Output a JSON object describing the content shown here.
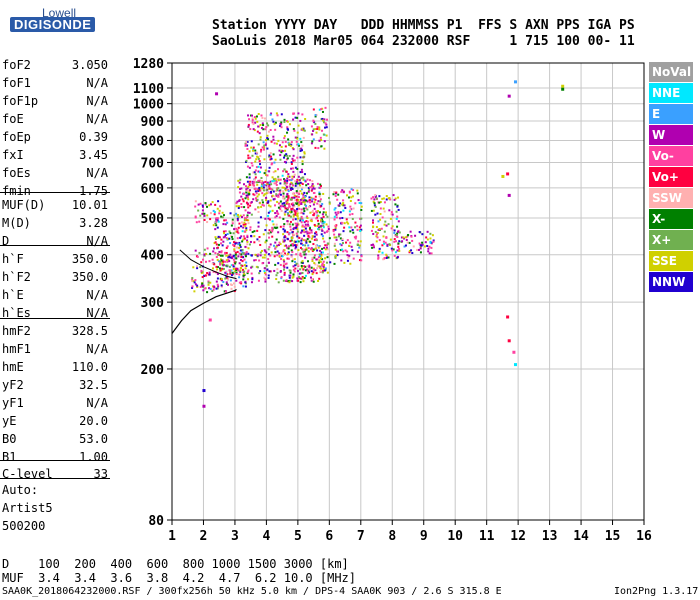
{
  "logo": {
    "top": "Lowell",
    "main": "DIGISONDE"
  },
  "header": {
    "line1": "Station YYYY DAY   DDD HHMMSS P1  FFS S AXN PPS IGA PS",
    "line2": "SaoLuis 2018 Mar05 064 232000 RSF     1 715 100 00- 11"
  },
  "params": [
    {
      "name": "foF2",
      "value": "3.050"
    },
    {
      "name": "foF1",
      "value": "N/A"
    },
    {
      "name": "foF1p",
      "value": "N/A"
    },
    {
      "name": "foE",
      "value": "N/A"
    },
    {
      "name": "foEp",
      "value": "0.39"
    },
    {
      "name": "fxI",
      "value": "3.45"
    },
    {
      "name": "foEs",
      "value": "N/A"
    },
    {
      "name": "fmin",
      "value": "1.75"
    },
    {
      "name": "MUF(D)",
      "value": "10.01"
    },
    {
      "name": "M(D)",
      "value": "3.28"
    },
    {
      "name": "D",
      "value": "N/A"
    },
    {
      "name": "h`F",
      "value": "350.0"
    },
    {
      "name": "h`F2",
      "value": "350.0"
    },
    {
      "name": "h`E",
      "value": "N/A"
    },
    {
      "name": "h`Es",
      "value": "N/A"
    },
    {
      "name": "hmF2",
      "value": "328.5"
    },
    {
      "name": "hmF1",
      "value": "N/A"
    },
    {
      "name": "hmE",
      "value": "110.0"
    },
    {
      "name": "yF2",
      "value": "32.5"
    },
    {
      "name": "yF1",
      "value": "N/A"
    },
    {
      "name": "yE",
      "value": "20.0"
    },
    {
      "name": "B0",
      "value": "53.0"
    },
    {
      "name": "B1",
      "value": "1.00"
    },
    {
      "name": "C-level",
      "value": "33"
    }
  ],
  "auto": {
    "line1": "Auto:",
    "line2": "Artist5",
    "line3": "500200"
  },
  "legend": [
    {
      "label": "NoVal",
      "color": "#a0a0a0"
    },
    {
      "label": "NNE",
      "color": "#00e8ff"
    },
    {
      "label": "E",
      "color": "#3aa0ff"
    },
    {
      "label": "W",
      "color": "#b000b0"
    },
    {
      "label": "Vo-",
      "color": "#ff40a0"
    },
    {
      "label": "Vo+",
      "color": "#ff0040"
    },
    {
      "label": "SSW",
      "color": "#ffb0b0"
    },
    {
      "label": "X-",
      "color": "#008000"
    },
    {
      "label": "X+",
      "color": "#70b050"
    },
    {
      "label": "SSE",
      "color": "#d0d000"
    },
    {
      "label": "NNW",
      "color": "#2000d0"
    }
  ],
  "footer": {
    "d_row": "D    100  200  400  600  800 1000 1500 3000 [km]",
    "muf_row": "MUF  3.4  3.4  3.6  3.8  4.2  4.7  6.2 10.0 [MHz]",
    "note": "SAA0K_2018064232000.RSF / 300fx256h 50 kHz 5.0 km / DPS-4 SAA0K 903 / 2.6 S 315.8 E",
    "version": "Ion2Png 1.3.17"
  },
  "chart_data": {
    "type": "scatter",
    "xlim": [
      1,
      16
    ],
    "x_ticks": [
      1,
      2,
      3,
      4,
      5,
      6,
      7,
      8,
      9,
      10,
      11,
      12,
      13,
      14,
      15,
      16
    ],
    "y_scale": "log",
    "ylim": [
      80,
      1280
    ],
    "y_ticks": [
      80,
      200,
      300,
      400,
      500,
      600,
      700,
      800,
      900,
      1000,
      1100,
      1280
    ],
    "grid": true,
    "legend_placement": "right",
    "trace": {
      "name": "",
      "x": [
        1.0,
        1.3,
        1.6,
        2.0,
        2.4,
        2.8,
        3.0,
        3.05
      ],
      "y": [
        248,
        268,
        285,
        298,
        310,
        318,
        322,
        324
      ]
    },
    "trace_ticks": {
      "x": [
        1.25,
        1.6,
        2.0,
        2.4,
        2.8,
        3.05
      ],
      "y": [
        412,
        388,
        372,
        360,
        350,
        346
      ]
    },
    "clusters": [
      {
        "x": [
          1.6,
          3.0
        ],
        "y": [
          320,
          420
        ]
      },
      {
        "x": [
          1.7,
          2.5
        ],
        "y": [
          480,
          560
        ]
      },
      {
        "x": [
          2.3,
          3.4
        ],
        "y": [
          330,
          520
        ]
      },
      {
        "x": [
          3.0,
          5.8
        ],
        "y": [
          340,
          640
        ]
      },
      {
        "x": [
          3.3,
          5.2
        ],
        "y": [
          540,
          950
        ]
      },
      {
        "x": [
          4.5,
          6.0
        ],
        "y": [
          360,
          580
        ]
      },
      {
        "x": [
          5.4,
          5.9
        ],
        "y": [
          760,
          1000
        ]
      },
      {
        "x": [
          6.1,
          7.0
        ],
        "y": [
          380,
          600
        ]
      },
      {
        "x": [
          7.3,
          8.2
        ],
        "y": [
          390,
          580
        ]
      },
      {
        "x": [
          8.0,
          9.3
        ],
        "y": [
          405,
          465
        ]
      }
    ],
    "isolated_points": [
      {
        "x": 2.4,
        "y": 1065,
        "c": "#b000b0"
      },
      {
        "x": 2.0,
        "y": 160,
        "c": "#b000b0"
      },
      {
        "x": 2.0,
        "y": 176,
        "c": "#2000d0"
      },
      {
        "x": 2.2,
        "y": 270,
        "c": "#ff40a0"
      },
      {
        "x": 11.5,
        "y": 645,
        "c": "#d0d000"
      },
      {
        "x": 11.65,
        "y": 655,
        "c": "#ff0040"
      },
      {
        "x": 11.7,
        "y": 575,
        "c": "#b000b0"
      },
      {
        "x": 11.7,
        "y": 1050,
        "c": "#b000b0"
      },
      {
        "x": 11.9,
        "y": 1145,
        "c": "#3aa0ff"
      },
      {
        "x": 11.65,
        "y": 275,
        "c": "#ff0040"
      },
      {
        "x": 11.7,
        "y": 238,
        "c": "#ff0040"
      },
      {
        "x": 11.85,
        "y": 222,
        "c": "#ff40a0"
      },
      {
        "x": 11.9,
        "y": 206,
        "c": "#00e8ff"
      },
      {
        "x": 13.4,
        "y": 1115,
        "c": "#d0d000"
      },
      {
        "x": 13.4,
        "y": 1095,
        "c": "#008000"
      }
    ]
  }
}
